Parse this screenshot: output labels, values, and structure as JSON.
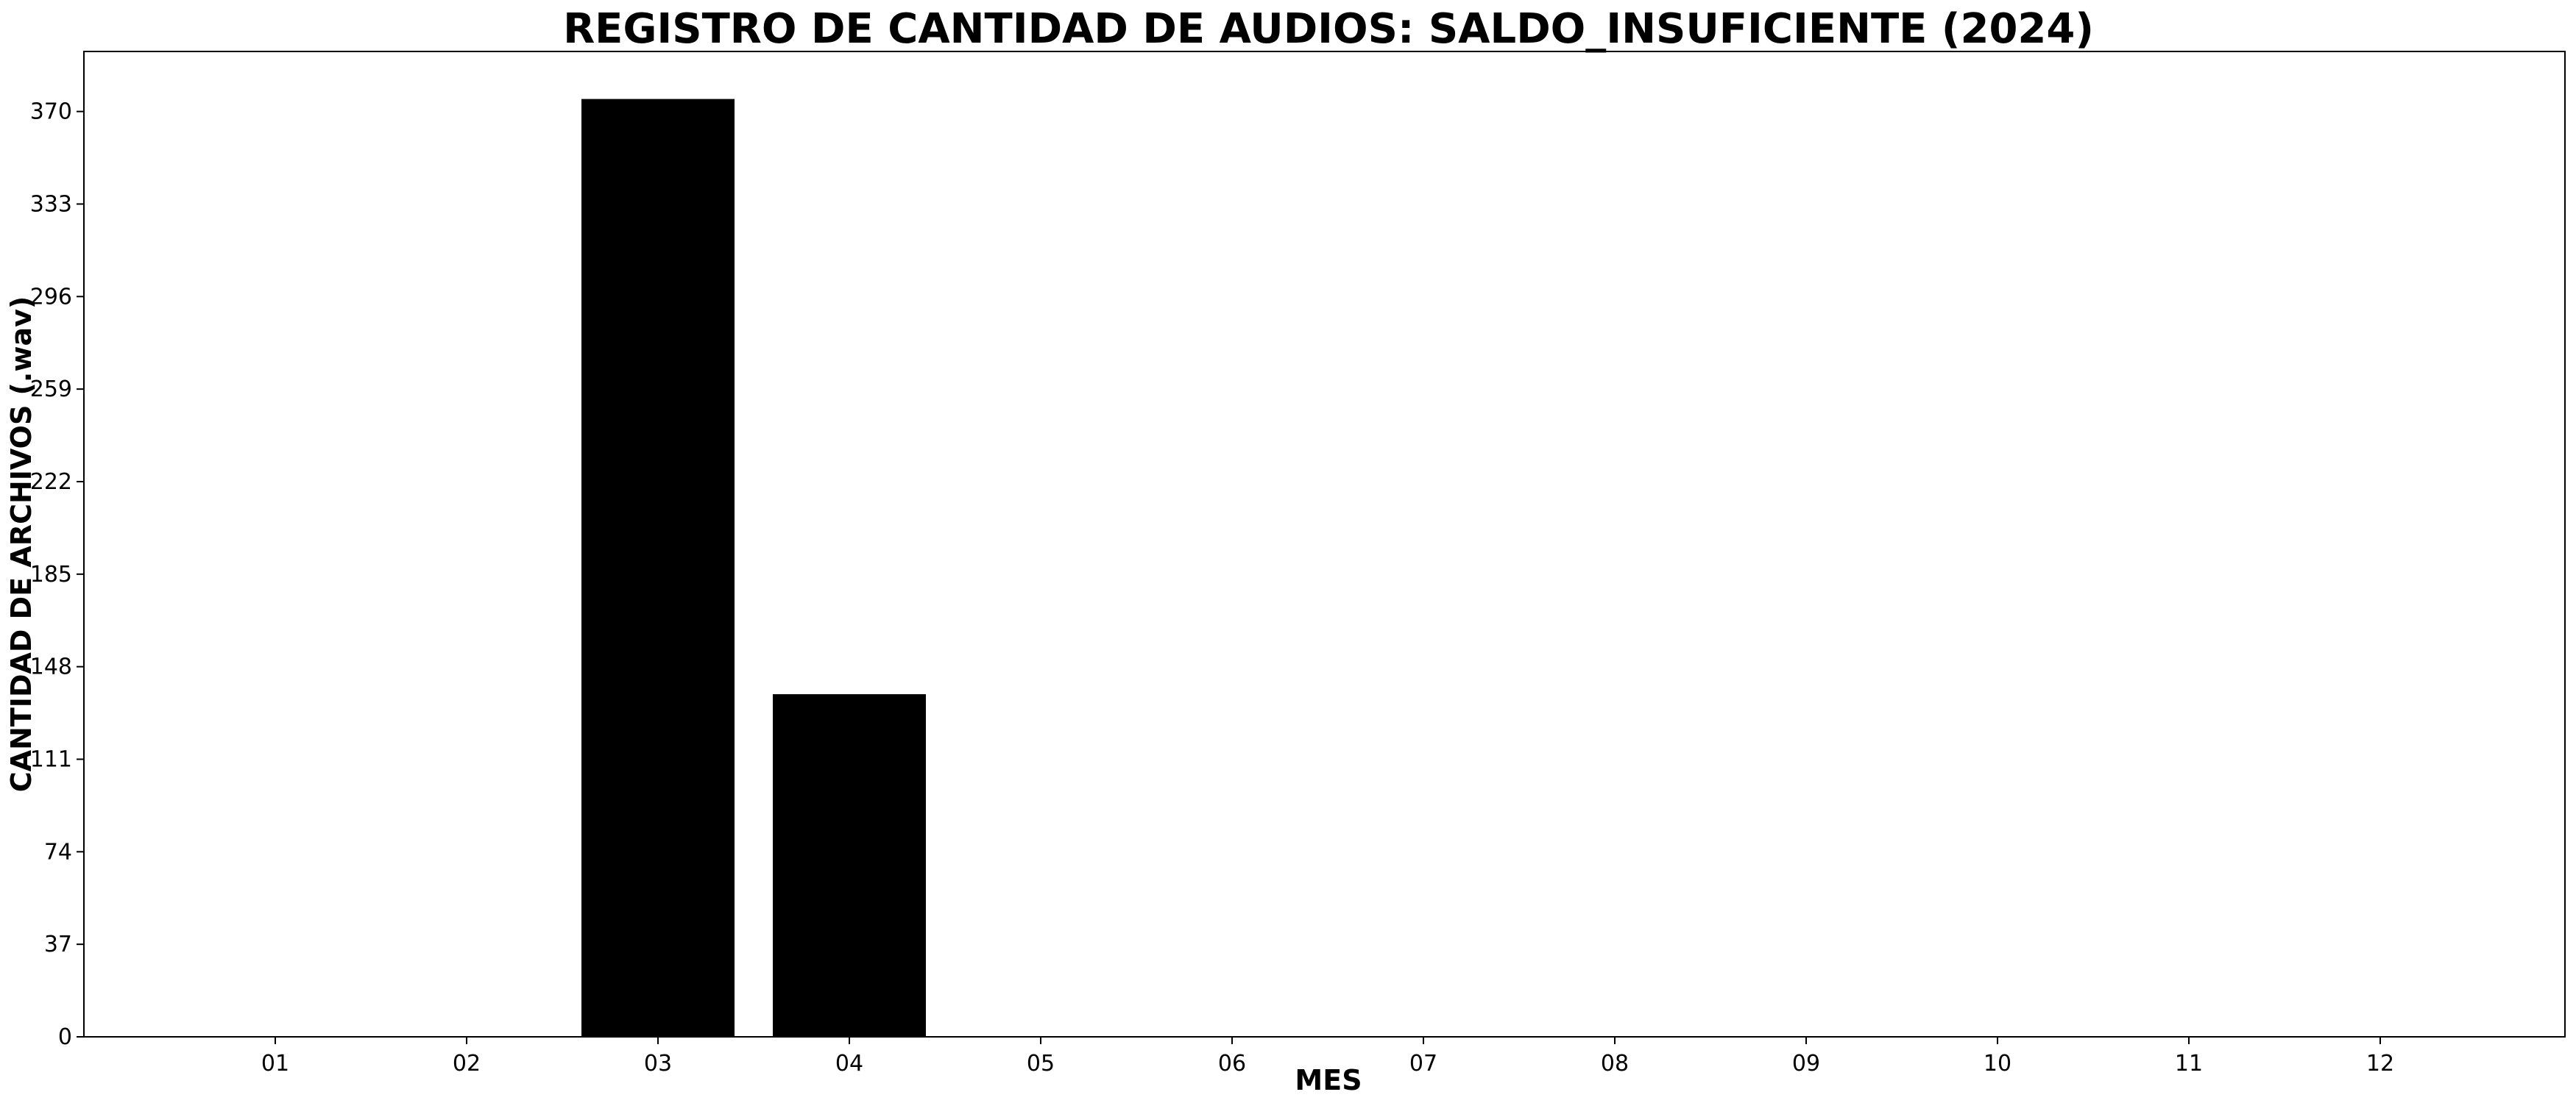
{
  "chart_data": {
    "type": "bar",
    "title": "REGISTRO DE CANTIDAD DE AUDIOS: SALDO_INSUFICIENTE (2024)",
    "xlabel": "MES",
    "ylabel": "CANTIDAD DE ARCHIVOS (.wav)",
    "categories": [
      "01",
      "02",
      "03",
      "04",
      "05",
      "06",
      "07",
      "08",
      "09",
      "10",
      "11",
      "12"
    ],
    "values": [
      0,
      0,
      375,
      137,
      0,
      0,
      0,
      0,
      0,
      0,
      0,
      0
    ],
    "yticks": [
      0,
      37,
      74,
      111,
      148,
      185,
      222,
      259,
      296,
      333,
      370
    ],
    "ylim": [
      0,
      394
    ],
    "grid": false,
    "legend": "none",
    "bar_color": "#000000"
  }
}
